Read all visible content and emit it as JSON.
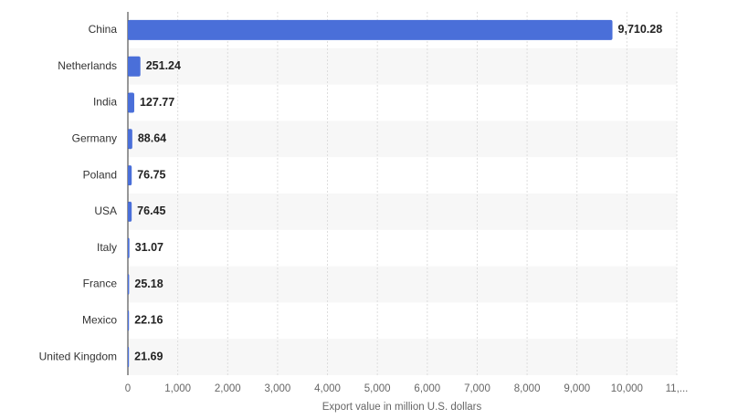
{
  "chart_data": {
    "type": "bar",
    "orientation": "horizontal",
    "categories": [
      "China",
      "Netherlands",
      "India",
      "Germany",
      "Poland",
      "USA",
      "Italy",
      "France",
      "Mexico",
      "United Kingdom"
    ],
    "values": [
      9710.28,
      251.24,
      127.77,
      88.64,
      76.75,
      76.45,
      31.07,
      25.18,
      22.16,
      21.69
    ],
    "value_labels": [
      "9,710.28",
      "251.24",
      "127.77",
      "88.64",
      "76.75",
      "76.45",
      "31.07",
      "25.18",
      "22.16",
      "21.69"
    ],
    "color": "#4a6fd9",
    "xlabel": "Export value in million U.S. dollars",
    "xlim": [
      0,
      11000
    ],
    "xticks": [
      0,
      {
        "value": 1000,
        "label": "1,000"
      },
      {
        "value": 2000,
        "label": "2,000"
      },
      {
        "value": 3000,
        "label": "3,000"
      },
      {
        "value": 4000,
        "label": "4,000"
      },
      {
        "value": 5000,
        "label": "5,000"
      },
      {
        "value": 6000,
        "label": "6,000"
      },
      {
        "value": 7000,
        "label": "7,000"
      },
      {
        "value": 8000,
        "label": "8,000"
      },
      {
        "value": 9000,
        "label": "9,000"
      },
      {
        "value": 10000,
        "label": "10,000"
      },
      {
        "value": 11000,
        "label": "11,..."
      }
    ],
    "grid": true
  }
}
